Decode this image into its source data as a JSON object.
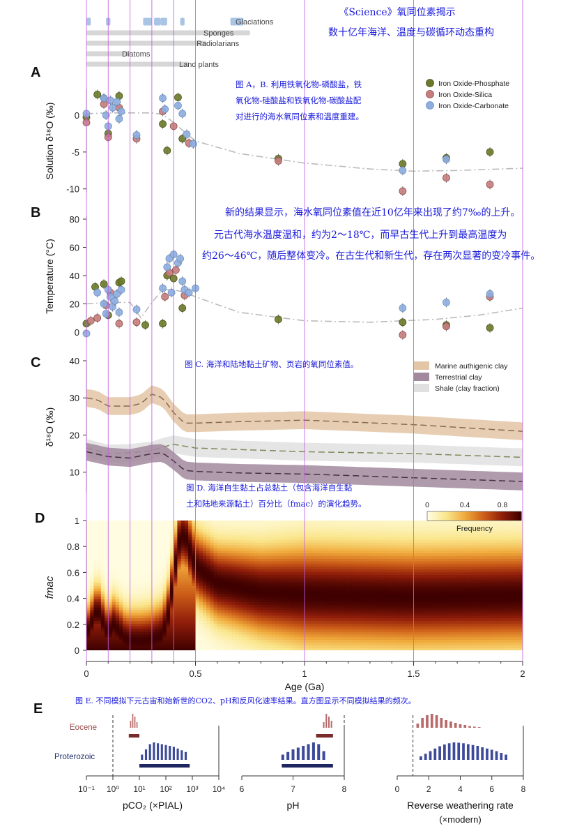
{
  "header": {
    "title_line1": "《Science》氧同位素揭示",
    "title_line2": "数十亿年海洋、温度与碳循环动态重构"
  },
  "captions": {
    "ab": [
      "图 A，B. 利用铁氧化物-磷酸盐，铁",
      "氧化物-硅酸盐和铁氧化物-碳酸盐配",
      "对进行的海水氧同位素和温度重建。"
    ],
    "results": [
      "新的结果显示，海水氧同位素值在近10亿年来出现了约7‰的上升。",
      "元古代海水温度温和，约为2～18℃，而早古生代上升到最高温度为",
      "约26～46℃，随后整体变冷。在古生代和新生代，存在两次显著的变冷事件。"
    ],
    "c": "图 C. 海洋和陆地黏土矿物、页岩的氧同位素值。",
    "d": [
      "图 D. 海洋自生黏土占总黏土（包含海洋自生黏",
      "土和陆地来源黏土）百分比（fmac）的演化趋势。"
    ],
    "e": "图 E. 不同模拟下元古宙和始新世的CO2、pH和反风化速率结果。直方图显示不同模拟结果的频次。"
  },
  "chart_data": [
    {
      "panel": "events",
      "type": "timeline",
      "rows": [
        {
          "label": "Glaciations",
          "intervals": [
            [
              0.0,
              0.02
            ],
            [
              0.09,
              0.11
            ],
            [
              0.26,
              0.3
            ],
            [
              0.31,
              0.34
            ],
            [
              0.34,
              0.37
            ],
            [
              0.43,
              0.45
            ],
            [
              0.66,
              0.72
            ]
          ]
        },
        {
          "label": "Sponges",
          "intervals": [
            [
              0.0,
              0.75
            ]
          ]
        },
        {
          "label": "Radiolarians",
          "intervals": [
            [
              0.0,
              0.55
            ]
          ]
        },
        {
          "label": "Diatoms",
          "intervals": [
            [
              0.0,
              0.2
            ]
          ]
        },
        {
          "label": "Land plants",
          "intervals": [
            [
              0.0,
              0.47
            ]
          ]
        }
      ]
    },
    {
      "panel": "A",
      "type": "scatter",
      "ylabel": "Solution δ¹⁸O (‰)",
      "ylim": [
        -10.5,
        3.5
      ],
      "yticks": [
        0,
        -5,
        -10
      ],
      "xlim": [
        0,
        2
      ],
      "legend": [
        "Iron Oxide-Phosphate",
        "Iron Oxide-Silica",
        "Iron Oxide-Carbonate"
      ],
      "colors": {
        "phosphate": "#6b7a2a",
        "silica": "#c77d7d",
        "carbonate": "#8eaee0"
      },
      "series": [
        {
          "name": "Iron Oxide-Phosphate",
          "x": [
            0.0,
            0.05,
            0.08,
            0.1,
            0.15,
            0.35,
            0.37,
            0.42,
            0.44,
            0.88,
            1.45,
            1.65,
            1.85
          ],
          "y": [
            -0.3,
            2.8,
            2.3,
            -2.5,
            2.6,
            -1.2,
            -4.8,
            2.4,
            -3.2,
            -5.9,
            -6.6,
            -5.8,
            -5.0
          ]
        },
        {
          "name": "Iron Oxide-Silica",
          "x": [
            0.0,
            0.08,
            0.1,
            0.15,
            0.23,
            0.35,
            0.4,
            0.47,
            0.88,
            1.45,
            1.65,
            1.85
          ],
          "y": [
            -1.0,
            1.5,
            -3.0,
            1.0,
            -3.2,
            0.5,
            -1.5,
            -3.8,
            -6.2,
            -10.3,
            -8.5,
            -9.4
          ]
        },
        {
          "name": "Iron Oxide-Carbonate",
          "x": [
            0.0,
            0.08,
            0.09,
            0.1,
            0.11,
            0.12,
            0.14,
            0.15,
            0.16,
            0.23,
            0.35,
            0.36,
            0.42,
            0.44,
            0.46,
            0.49,
            1.45,
            1.65
          ],
          "y": [
            0.2,
            2.3,
            0.0,
            -1.5,
            2.0,
            1.0,
            1.8,
            -0.5,
            0.5,
            -2.7,
            2.3,
            0.8,
            1.3,
            0.2,
            -2.6,
            -3.9,
            -7.5,
            -6.0
          ]
        }
      ],
      "trend": {
        "x": [
          0,
          0.1,
          0.2,
          0.3,
          0.35,
          0.4,
          0.45,
          0.5,
          0.7,
          1.0,
          1.3,
          1.5,
          1.7,
          2.0
        ],
        "y": [
          0.2,
          0.3,
          0.3,
          0.3,
          0.1,
          -1.0,
          -2.3,
          -3.5,
          -5.2,
          -6.5,
          -7.3,
          -7.6,
          -7.5,
          -7.2
        ]
      }
    },
    {
      "panel": "B",
      "type": "scatter",
      "ylabel": "Temperature (°C)",
      "ylim": [
        -3,
        82
      ],
      "yticks": [
        0,
        20,
        40,
        60,
        80
      ],
      "xlim": [
        0,
        2
      ],
      "series": [
        {
          "name": "Iron Oxide-Phosphate",
          "x": [
            0.0,
            0.04,
            0.08,
            0.1,
            0.15,
            0.16,
            0.27,
            0.35,
            0.37,
            0.4,
            0.44,
            0.88,
            1.45,
            1.65,
            1.85
          ],
          "y": [
            6,
            32,
            34,
            12,
            35,
            36,
            5,
            6,
            40,
            38,
            17,
            9,
            7,
            5,
            3
          ]
        },
        {
          "name": "Iron Oxide-Silica",
          "x": [
            0.02,
            0.05,
            0.09,
            0.11,
            0.15,
            0.23,
            0.36,
            0.38,
            0.41,
            0.45,
            1.45,
            1.65,
            1.85
          ],
          "y": [
            8,
            10,
            19,
            28,
            6,
            7,
            25,
            42,
            44,
            26,
            -2,
            4,
            25
          ]
        },
        {
          "name": "Iron Oxide-Carbonate",
          "x": [
            0.0,
            0.05,
            0.08,
            0.09,
            0.1,
            0.11,
            0.12,
            0.13,
            0.14,
            0.15,
            0.16,
            0.23,
            0.35,
            0.37,
            0.38,
            0.39,
            0.4,
            0.42,
            0.43,
            0.44,
            0.45,
            0.47,
            0.5,
            1.45,
            1.65,
            1.85
          ],
          "y": [
            -1,
            28,
            20,
            13,
            30,
            25,
            18,
            22,
            27,
            14,
            30,
            16,
            31,
            46,
            52,
            28,
            55,
            49,
            52,
            36,
            30,
            28,
            31,
            17,
            21,
            27
          ]
        }
      ],
      "trend": {
        "x": [
          0,
          0.1,
          0.2,
          0.25,
          0.3,
          0.35,
          0.4,
          0.45,
          0.5,
          0.7,
          1.0,
          1.3,
          1.6,
          1.8,
          2.0
        ],
        "y": [
          20,
          21,
          21,
          10,
          21,
          30,
          30,
          28,
          25,
          14,
          8,
          7,
          9,
          12,
          17
        ]
      }
    },
    {
      "panel": "C",
      "type": "line",
      "ylabel": "δ¹⁸O (‰)",
      "ylim": [
        4.5,
        40
      ],
      "yticks": [
        10,
        20,
        30,
        40
      ],
      "xlim": [
        0,
        2
      ],
      "legend": [
        "Marine authigenic clay",
        "Terrestrial clay",
        "Shale (clay fraction)"
      ],
      "colors": {
        "marine": "#e3c6a6",
        "terrestrial": "#a2899e",
        "shale": "#dfdfdf"
      },
      "series": [
        {
          "name": "Marine authigenic clay",
          "x": [
            0,
            0.05,
            0.1,
            0.2,
            0.25,
            0.3,
            0.35,
            0.4,
            0.45,
            0.5,
            0.7,
            1.0,
            1.5,
            2.0
          ],
          "y": [
            30,
            29.5,
            27.8,
            27.8,
            28.5,
            31,
            30,
            26,
            23.2,
            23.2,
            23.6,
            24,
            22.8,
            21
          ]
        },
        {
          "name": "Terrestrial clay",
          "x": [
            0,
            0.1,
            0.2,
            0.3,
            0.35,
            0.4,
            0.45,
            0.5,
            0.7,
            1.0,
            1.5,
            2.0
          ],
          "y": [
            15.5,
            14.2,
            13.8,
            15,
            15.2,
            13,
            10.5,
            10.2,
            9.8,
            9.5,
            8.5,
            7.5
          ]
        },
        {
          "name": "Shale (clay fraction)",
          "x": [
            0,
            0.1,
            0.2,
            0.3,
            0.35,
            0.4,
            0.45,
            0.5,
            1.0,
            1.5,
            2.0
          ],
          "y": [
            16.5,
            15,
            15.2,
            15.8,
            16.8,
            17.5,
            17,
            16.5,
            15.5,
            15,
            14
          ]
        }
      ]
    },
    {
      "panel": "D",
      "type": "heatmap",
      "ylabel": "fmac",
      "xlabel": "Age (Ga)",
      "xlim": [
        0,
        2
      ],
      "xticks": [
        0,
        0.5,
        1,
        1.5,
        2
      ],
      "xtick_labels": [
        "0",
        "0.5",
        "1",
        "1.5",
        "2"
      ],
      "ylim": [
        0,
        1
      ],
      "yticks": [
        0,
        0.2,
        0.4,
        0.6,
        0.8,
        1
      ],
      "colorbar": {
        "label": "Frequency",
        "ticks": [
          0,
          0.4,
          0.8
        ],
        "range": [
          0,
          1
        ]
      },
      "median": {
        "x": [
          0,
          0.05,
          0.1,
          0.12,
          0.15,
          0.18,
          0.25,
          0.3,
          0.35,
          0.38,
          0.42,
          0.45,
          0.5,
          0.6,
          0.8,
          1.0,
          1.5,
          2.0
        ],
        "y": [
          0.12,
          0.32,
          0.12,
          0.2,
          0.15,
          0.08,
          0.07,
          0.08,
          0.12,
          0.3,
          0.82,
          0.9,
          0.65,
          0.52,
          0.45,
          0.43,
          0.41,
          0.42
        ]
      }
    },
    {
      "panel": "E",
      "type": "histogram",
      "rows": [
        "Eocene",
        "Proterozoic"
      ],
      "subplots": [
        {
          "xlabel": "pCO₂ (×PIAL)",
          "scale": "log",
          "xlim": [
            -1,
            4
          ],
          "xticks": [
            -1,
            0,
            1,
            2,
            3,
            4
          ],
          "xtick_labels": [
            "10⁻¹",
            "10⁰",
            "10¹",
            "10²",
            "10³",
            "10⁴"
          ],
          "eocene": {
            "centers": [
              0.67,
              0.75,
              0.83,
              0.91
            ],
            "counts": [
              0.5,
              1.0,
              0.8,
              0.4
            ],
            "range": [
              0.6,
              1.0
            ]
          },
          "proterozoic": {
            "centers": [
              1.1,
              1.25,
              1.4,
              1.55,
              1.7,
              1.85,
              2.0,
              2.15,
              2.3,
              2.45,
              2.6,
              2.75
            ],
            "counts": [
              0.3,
              0.6,
              0.9,
              1.0,
              0.95,
              0.9,
              0.85,
              0.8,
              0.75,
              0.65,
              0.55,
              0.45
            ],
            "range": [
              1.0,
              2.9
            ]
          }
        },
        {
          "xlabel": "pH",
          "scale": "linear",
          "xlim": [
            6,
            8
          ],
          "xticks": [
            6,
            7,
            8
          ],
          "xtick_labels": [
            "6",
            "7",
            "8"
          ],
          "eocene": {
            "centers": [
              7.6,
              7.65,
              7.7,
              7.75
            ],
            "counts": [
              0.4,
              1.0,
              0.8,
              0.5
            ],
            "range": [
              7.45,
              7.78
            ]
          },
          "proterozoic": {
            "centers": [
              6.8,
              6.9,
              7.0,
              7.1,
              7.2,
              7.3,
              7.4,
              7.5,
              7.6
            ],
            "counts": [
              0.3,
              0.45,
              0.6,
              0.7,
              0.8,
              0.9,
              1.0,
              0.9,
              0.5
            ],
            "range": [
              6.78,
              7.78
            ]
          }
        },
        {
          "xlabel": "Reverse weathering rate",
          "xlabel2": "(×modern)",
          "scale": "linear",
          "xlim": [
            0,
            8
          ],
          "xticks": [
            0,
            2,
            4,
            6,
            8
          ],
          "xtick_labels": [
            "0",
            "2",
            "4",
            "6",
            "8"
          ],
          "eocene": {
            "centers": [
              1.3,
              1.6,
              1.9,
              2.2,
              2.5,
              2.8,
              3.1,
              3.4,
              3.7,
              4.0,
              4.3,
              4.6,
              4.9,
              5.2
            ],
            "counts": [
              0.3,
              0.7,
              0.9,
              1.0,
              0.9,
              0.7,
              0.55,
              0.45,
              0.35,
              0.25,
              0.2,
              0.12,
              0.08,
              0.05
            ]
          },
          "proterozoic": {
            "centers": [
              1.5,
              1.8,
              2.1,
              2.4,
              2.7,
              3.0,
              3.3,
              3.6,
              3.9,
              4.2,
              4.5,
              4.8,
              5.1,
              5.4,
              5.7,
              6.0,
              6.3,
              6.6,
              6.9
            ],
            "counts": [
              0.2,
              0.35,
              0.5,
              0.65,
              0.78,
              0.88,
              0.95,
              1.0,
              0.98,
              0.95,
              0.9,
              0.85,
              0.8,
              0.72,
              0.65,
              0.58,
              0.5,
              0.4,
              0.3
            ]
          }
        }
      ]
    }
  ]
}
